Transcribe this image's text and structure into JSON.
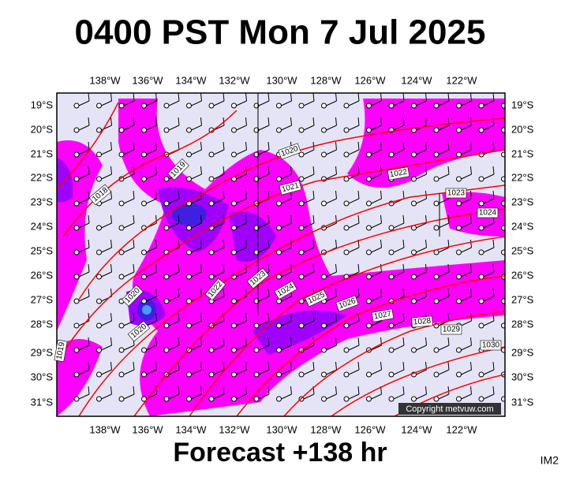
{
  "header": {
    "title": "0400 PST Mon 7 Jul 2025"
  },
  "footer": {
    "title": "Forecast +138 hr",
    "code": "IM2"
  },
  "map": {
    "copyright": "Copyright metvuw.com",
    "longitudes": [
      "138°W",
      "136°W",
      "134°W",
      "132°W",
      "130°W",
      "128°W",
      "126°W",
      "124°W",
      "122°W"
    ],
    "latitudes": [
      "19°S",
      "20°S",
      "21°S",
      "22°S",
      "23°S",
      "24°S",
      "25°S",
      "26°S",
      "27°S",
      "28°S",
      "29°S",
      "30°S",
      "31°S"
    ],
    "isobar_labels": [
      "1019",
      "1018",
      "1020",
      "1021",
      "1022",
      "1023",
      "1024",
      "1020",
      "1022",
      "1023",
      "1024",
      "1025",
      "1026",
      "1027",
      "1028",
      "1029",
      "1030",
      "1019",
      "1020"
    ]
  }
}
